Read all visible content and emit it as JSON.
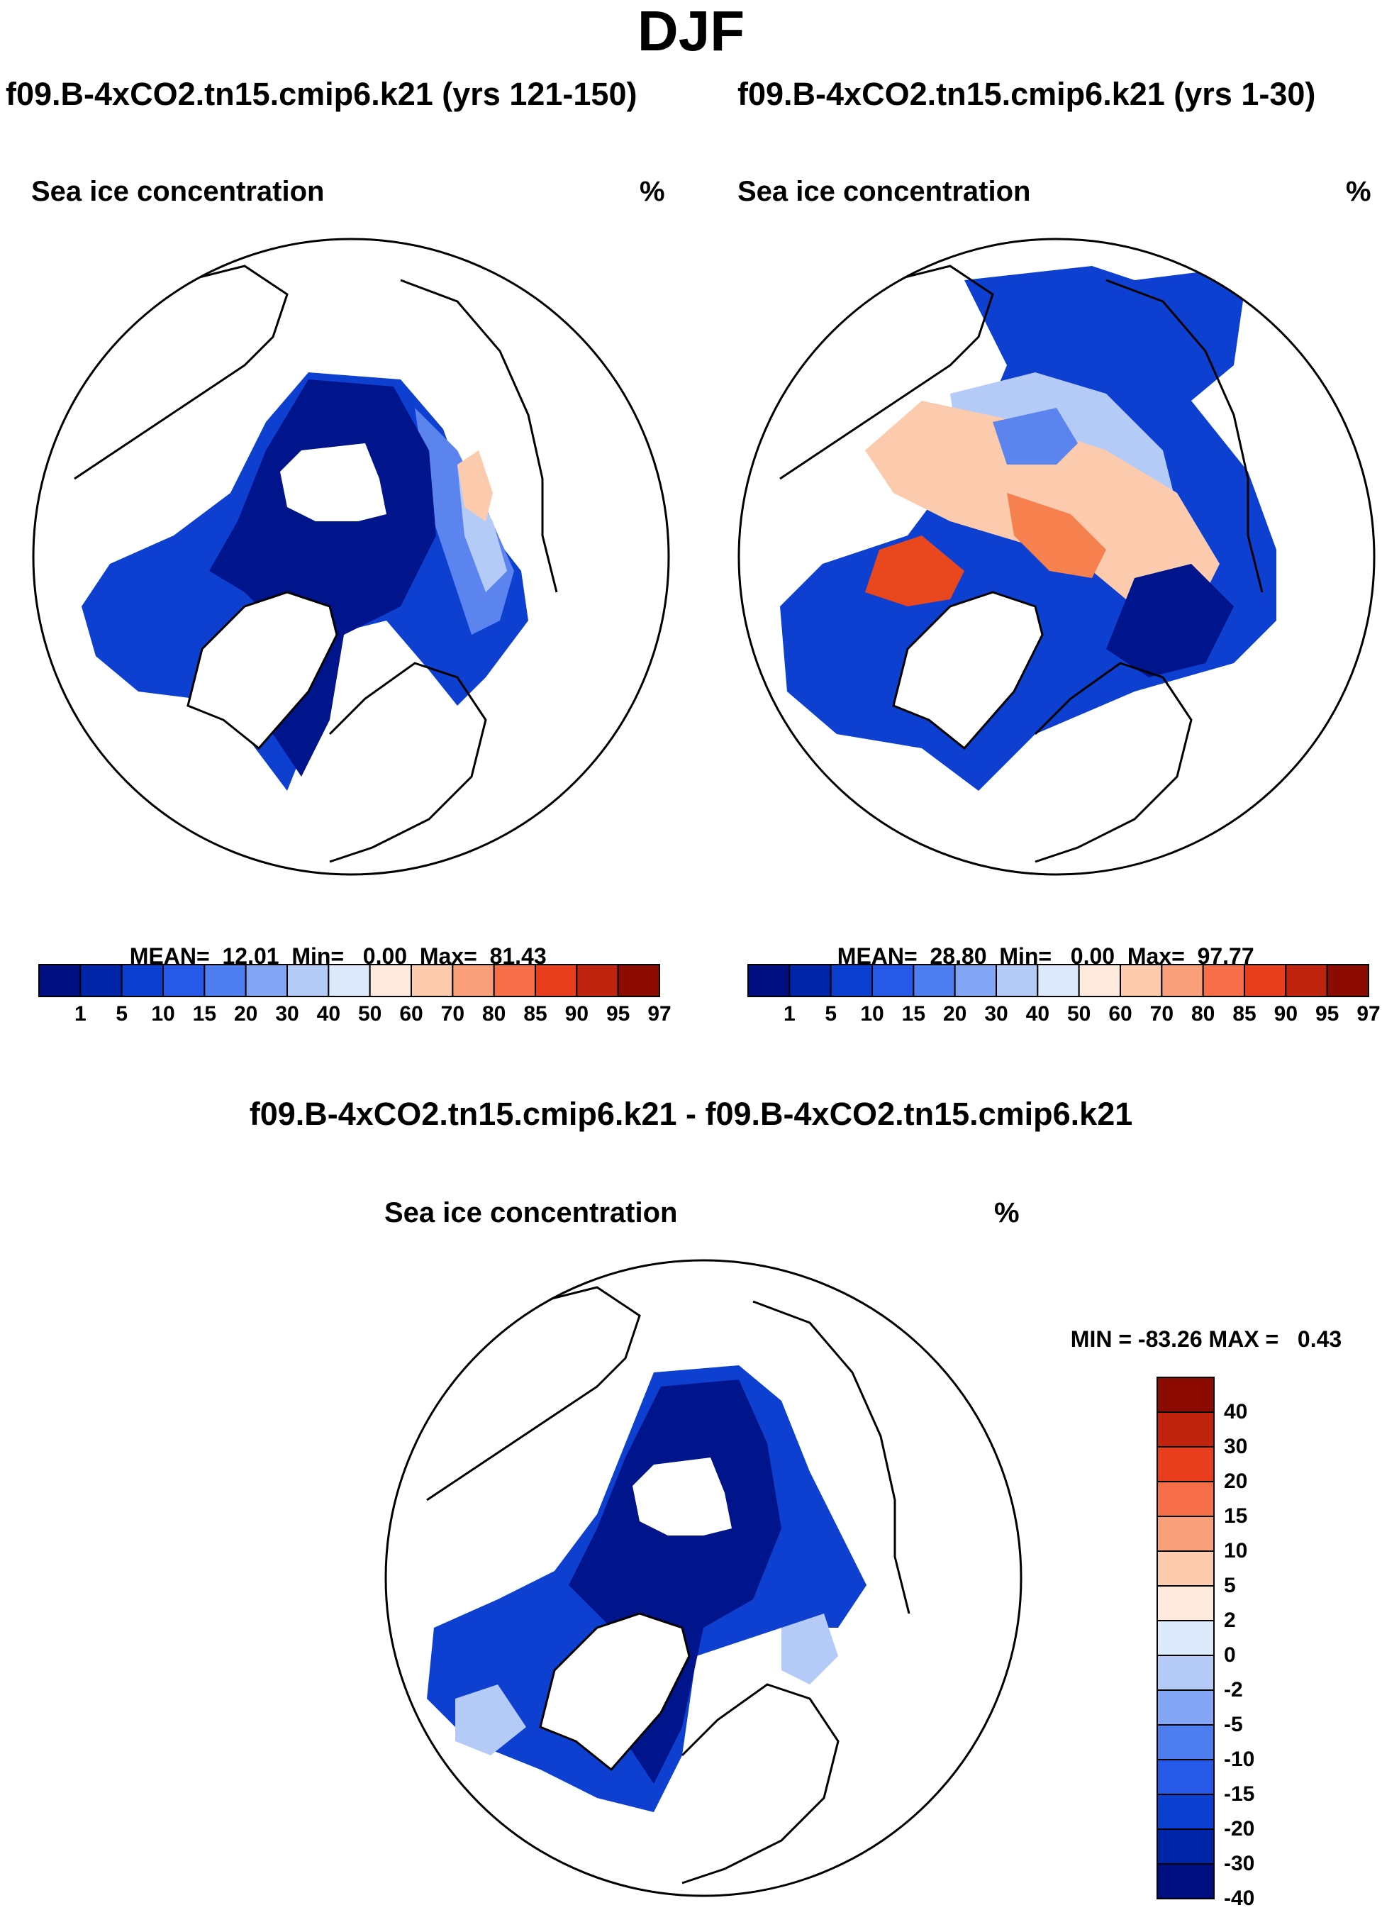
{
  "figure": {
    "season": "DJF",
    "panel_left_title": "f09.B-4xCO2.tn15.cmip6.k21 (yrs 121-150)",
    "panel_right_title": "f09.B-4xCO2.tn15.cmip6.k21 (yrs 1-30)",
    "diff_title": "f09.B-4xCO2.tn15.cmip6.k21 - f09.B-4xCO2.tn15.cmip6.k21"
  },
  "chart_data": [
    {
      "type": "heatmap",
      "projection": "north-polar-stereographic",
      "variable": "Sea ice concentration",
      "units": "%",
      "mean_label": "MEAN=",
      "mean": "12.01",
      "min_label": "Min=",
      "min": "0.00",
      "max_label": "Max=",
      "max": "81.43",
      "colorbar_ticks": [
        "1",
        "5",
        "10",
        "15",
        "20",
        "30",
        "40",
        "50",
        "60",
        "70",
        "80",
        "85",
        "90",
        "95",
        "97"
      ]
    },
    {
      "type": "heatmap",
      "projection": "north-polar-stereographic",
      "variable": "Sea ice concentration",
      "units": "%",
      "mean_label": "MEAN=",
      "mean": "28.80",
      "min_label": "Min=",
      "min": "0.00",
      "max_label": "Max=",
      "max": "97.77",
      "colorbar_ticks": [
        "1",
        "5",
        "10",
        "15",
        "20",
        "30",
        "40",
        "50",
        "60",
        "70",
        "80",
        "85",
        "90",
        "95",
        "97"
      ]
    },
    {
      "type": "heatmap",
      "projection": "north-polar-stereographic",
      "variable": "Sea ice concentration",
      "units": "%",
      "min_label": "MIN =",
      "min": "-83.26",
      "max_label": "MAX =",
      "max": "0.43",
      "colorbar_ticks": [
        "40",
        "30",
        "20",
        "15",
        "10",
        "5",
        "2",
        "0",
        "-2",
        "-5",
        "-10",
        "-15",
        "-20",
        "-30",
        "-40"
      ]
    }
  ],
  "colorbar_colors": [
    "#000f7f",
    "#0024a8",
    "#0a3fd0",
    "#2659e8",
    "#4f7ef0",
    "#83a6f4",
    "#b4cbf8",
    "#ddeafc",
    "#fdeadc",
    "#fccbae",
    "#f9a07a",
    "#f56e47",
    "#e83e1e",
    "#c0240f",
    "#8b0b00"
  ],
  "map_colors": {
    "land": "#ffffff",
    "coast": "#000000",
    "ice_deep": "#00148c",
    "ice_mid": "#0d3fd1",
    "ice_light": "#5b84ee",
    "ice_pale": "#b4cbf8",
    "warm_light": "#fccbae",
    "warm_mid": "#f6814e",
    "warm_deep": "#e9471e"
  }
}
